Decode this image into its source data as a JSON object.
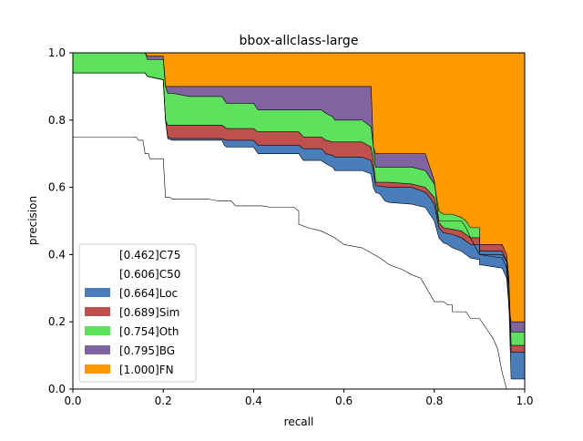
{
  "chart_data": {
    "type": "area",
    "title": "bbox-allclass-large",
    "xlabel": "recall",
    "ylabel": "precision",
    "xlim": [
      0,
      1
    ],
    "ylim": [
      0,
      1
    ],
    "xticks": [
      "0.0",
      "0.2",
      "0.4",
      "0.6",
      "0.8",
      "1.0"
    ],
    "yticks": [
      "0.0",
      "0.2",
      "0.4",
      "0.6",
      "0.8",
      "1.0"
    ],
    "legend_position": "lower-left",
    "series": [
      {
        "name": "C75",
        "label": "[0.462]C75",
        "fill": "#ffffff",
        "points": [
          [
            0,
            0.75
          ],
          [
            0.14,
            0.75
          ],
          [
            0.145,
            0.74
          ],
          [
            0.155,
            0.74
          ],
          [
            0.16,
            0.7
          ],
          [
            0.168,
            0.7
          ],
          [
            0.17,
            0.685
          ],
          [
            0.2,
            0.685
          ],
          [
            0.205,
            0.57
          ],
          [
            0.215,
            0.57
          ],
          [
            0.22,
            0.565
          ],
          [
            0.3,
            0.565
          ],
          [
            0.32,
            0.56
          ],
          [
            0.35,
            0.56
          ],
          [
            0.36,
            0.545
          ],
          [
            0.42,
            0.545
          ],
          [
            0.44,
            0.54
          ],
          [
            0.49,
            0.54
          ],
          [
            0.5,
            0.53
          ],
          [
            0.5,
            0.49
          ],
          [
            0.52,
            0.48
          ],
          [
            0.55,
            0.47
          ],
          [
            0.58,
            0.45
          ],
          [
            0.6,
            0.43
          ],
          [
            0.64,
            0.42
          ],
          [
            0.68,
            0.39
          ],
          [
            0.7,
            0.37
          ],
          [
            0.73,
            0.355
          ],
          [
            0.75,
            0.34
          ],
          [
            0.77,
            0.33
          ],
          [
            0.8,
            0.26
          ],
          [
            0.82,
            0.26
          ],
          [
            0.83,
            0.25
          ],
          [
            0.84,
            0.25
          ],
          [
            0.84,
            0.23
          ],
          [
            0.87,
            0.23
          ],
          [
            0.88,
            0.21
          ],
          [
            0.9,
            0.21
          ],
          [
            0.91,
            0.19
          ],
          [
            0.92,
            0.17
          ],
          [
            0.93,
            0.15
          ],
          [
            0.94,
            0.12
          ],
          [
            0.95,
            0.05
          ],
          [
            0.96,
            0.0
          ],
          [
            1.0,
            0.0
          ]
        ]
      },
      {
        "name": "C50",
        "label": "[0.606]C50",
        "fill": "#ffffff",
        "points": [
          [
            0,
            0.94
          ],
          [
            0.16,
            0.94
          ],
          [
            0.165,
            0.93
          ],
          [
            0.2,
            0.92
          ],
          [
            0.205,
            0.8
          ],
          [
            0.21,
            0.745
          ],
          [
            0.22,
            0.74
          ],
          [
            0.33,
            0.74
          ],
          [
            0.335,
            0.725
          ],
          [
            0.34,
            0.72
          ],
          [
            0.4,
            0.72
          ],
          [
            0.41,
            0.7
          ],
          [
            0.5,
            0.7
          ],
          [
            0.51,
            0.68
          ],
          [
            0.55,
            0.68
          ],
          [
            0.56,
            0.67
          ],
          [
            0.575,
            0.66
          ],
          [
            0.58,
            0.65
          ],
          [
            0.64,
            0.65
          ],
          [
            0.66,
            0.64
          ],
          [
            0.665,
            0.6
          ],
          [
            0.67,
            0.585
          ],
          [
            0.68,
            0.58
          ],
          [
            0.69,
            0.56
          ],
          [
            0.7,
            0.555
          ],
          [
            0.75,
            0.55
          ],
          [
            0.78,
            0.54
          ],
          [
            0.79,
            0.52
          ],
          [
            0.8,
            0.5
          ],
          [
            0.81,
            0.45
          ],
          [
            0.82,
            0.435
          ],
          [
            0.83,
            0.43
          ],
          [
            0.84,
            0.42
          ],
          [
            0.86,
            0.41
          ],
          [
            0.87,
            0.4
          ],
          [
            0.88,
            0.39
          ],
          [
            0.9,
            0.385
          ],
          [
            0.9,
            0.37
          ],
          [
            0.95,
            0.36
          ],
          [
            0.96,
            0.33
          ],
          [
            0.965,
            0.25
          ],
          [
            0.97,
            0.03
          ],
          [
            1.0,
            0.03
          ]
        ]
      },
      {
        "name": "Loc",
        "label": "[0.664]Loc",
        "fill": "#4a7ebb",
        "points": [
          [
            0,
            0.94
          ],
          [
            0.16,
            0.94
          ],
          [
            0.165,
            0.93
          ],
          [
            0.2,
            0.92
          ],
          [
            0.205,
            0.8
          ],
          [
            0.21,
            0.75
          ],
          [
            0.22,
            0.745
          ],
          [
            0.33,
            0.745
          ],
          [
            0.34,
            0.74
          ],
          [
            0.4,
            0.74
          ],
          [
            0.41,
            0.725
          ],
          [
            0.5,
            0.725
          ],
          [
            0.51,
            0.715
          ],
          [
            0.55,
            0.715
          ],
          [
            0.56,
            0.7
          ],
          [
            0.575,
            0.695
          ],
          [
            0.58,
            0.69
          ],
          [
            0.64,
            0.69
          ],
          [
            0.66,
            0.68
          ],
          [
            0.665,
            0.65
          ],
          [
            0.67,
            0.605
          ],
          [
            0.7,
            0.6
          ],
          [
            0.75,
            0.6
          ],
          [
            0.78,
            0.585
          ],
          [
            0.79,
            0.57
          ],
          [
            0.8,
            0.55
          ],
          [
            0.81,
            0.48
          ],
          [
            0.82,
            0.465
          ],
          [
            0.84,
            0.46
          ],
          [
            0.86,
            0.45
          ],
          [
            0.87,
            0.44
          ],
          [
            0.88,
            0.43
          ],
          [
            0.9,
            0.43
          ],
          [
            0.9,
            0.41
          ],
          [
            0.95,
            0.41
          ],
          [
            0.96,
            0.38
          ],
          [
            0.965,
            0.31
          ],
          [
            0.97,
            0.11
          ],
          [
            1.0,
            0.11
          ]
        ]
      },
      {
        "name": "Sim",
        "label": "[0.689]Sim",
        "fill": "#c0504d",
        "points": [
          [
            0,
            0.94
          ],
          [
            0.16,
            0.94
          ],
          [
            0.165,
            0.93
          ],
          [
            0.2,
            0.92
          ],
          [
            0.205,
            0.8
          ],
          [
            0.21,
            0.785
          ],
          [
            0.22,
            0.785
          ],
          [
            0.33,
            0.785
          ],
          [
            0.34,
            0.775
          ],
          [
            0.4,
            0.775
          ],
          [
            0.41,
            0.765
          ],
          [
            0.5,
            0.765
          ],
          [
            0.51,
            0.75
          ],
          [
            0.55,
            0.75
          ],
          [
            0.56,
            0.74
          ],
          [
            0.575,
            0.735
          ],
          [
            0.58,
            0.735
          ],
          [
            0.64,
            0.735
          ],
          [
            0.66,
            0.72
          ],
          [
            0.665,
            0.68
          ],
          [
            0.67,
            0.615
          ],
          [
            0.7,
            0.615
          ],
          [
            0.75,
            0.61
          ],
          [
            0.78,
            0.6
          ],
          [
            0.79,
            0.585
          ],
          [
            0.8,
            0.57
          ],
          [
            0.81,
            0.495
          ],
          [
            0.82,
            0.48
          ],
          [
            0.84,
            0.475
          ],
          [
            0.86,
            0.47
          ],
          [
            0.87,
            0.46
          ],
          [
            0.88,
            0.45
          ],
          [
            0.9,
            0.45
          ],
          [
            0.9,
            0.43
          ],
          [
            0.95,
            0.43
          ],
          [
            0.96,
            0.4
          ],
          [
            0.965,
            0.33
          ],
          [
            0.97,
            0.13
          ],
          [
            1.0,
            0.13
          ]
        ]
      },
      {
        "name": "Oth",
        "label": "[0.754]Oth",
        "fill": "#5ee25e",
        "points": [
          [
            0,
            1.0
          ],
          [
            0.16,
            1.0
          ],
          [
            0.165,
            0.98
          ],
          [
            0.2,
            0.98
          ],
          [
            0.205,
            0.9
          ],
          [
            0.21,
            0.88
          ],
          [
            0.22,
            0.88
          ],
          [
            0.26,
            0.87
          ],
          [
            0.33,
            0.87
          ],
          [
            0.34,
            0.85
          ],
          [
            0.4,
            0.85
          ],
          [
            0.41,
            0.83
          ],
          [
            0.5,
            0.83
          ],
          [
            0.51,
            0.83
          ],
          [
            0.55,
            0.83
          ],
          [
            0.56,
            0.82
          ],
          [
            0.575,
            0.81
          ],
          [
            0.58,
            0.8
          ],
          [
            0.64,
            0.8
          ],
          [
            0.66,
            0.78
          ],
          [
            0.665,
            0.72
          ],
          [
            0.67,
            0.66
          ],
          [
            0.7,
            0.66
          ],
          [
            0.75,
            0.66
          ],
          [
            0.78,
            0.65
          ],
          [
            0.79,
            0.63
          ],
          [
            0.8,
            0.61
          ],
          [
            0.81,
            0.53
          ],
          [
            0.82,
            0.52
          ],
          [
            0.84,
            0.52
          ],
          [
            0.86,
            0.51
          ],
          [
            0.87,
            0.5
          ],
          [
            0.88,
            0.48
          ],
          [
            0.9,
            0.48
          ],
          [
            0.9,
            0.4
          ],
          [
            0.95,
            0.39
          ],
          [
            0.96,
            0.36
          ],
          [
            0.965,
            0.26
          ],
          [
            0.97,
            0.17
          ],
          [
            1.0,
            0.17
          ]
        ]
      },
      {
        "name": "BG",
        "label": "[0.795]BG",
        "fill": "#8064a2",
        "points": [
          [
            0,
            1.0
          ],
          [
            0.16,
            1.0
          ],
          [
            0.165,
            0.99
          ],
          [
            0.2,
            0.99
          ],
          [
            0.205,
            0.9
          ],
          [
            0.21,
            0.9
          ],
          [
            0.22,
            0.9
          ],
          [
            0.33,
            0.9
          ],
          [
            0.34,
            0.9
          ],
          [
            0.4,
            0.9
          ],
          [
            0.5,
            0.9
          ],
          [
            0.55,
            0.9
          ],
          [
            0.58,
            0.9
          ],
          [
            0.64,
            0.9
          ],
          [
            0.66,
            0.9
          ],
          [
            0.665,
            0.72
          ],
          [
            0.67,
            0.7
          ],
          [
            0.7,
            0.7
          ],
          [
            0.75,
            0.7
          ],
          [
            0.78,
            0.7
          ],
          [
            0.8,
            0.62
          ],
          [
            0.81,
            0.5
          ],
          [
            0.82,
            0.5
          ],
          [
            0.84,
            0.5
          ],
          [
            0.86,
            0.5
          ],
          [
            0.87,
            0.48
          ],
          [
            0.88,
            0.45
          ],
          [
            0.9,
            0.4
          ],
          [
            0.95,
            0.4
          ],
          [
            0.96,
            0.38
          ],
          [
            0.965,
            0.24
          ],
          [
            0.97,
            0.2
          ],
          [
            1.0,
            0.2
          ]
        ]
      },
      {
        "name": "FN",
        "label": "[1.000]FN",
        "fill": "#ff9900",
        "points": [
          [
            0,
            1.0
          ],
          [
            1.0,
            1.0
          ]
        ]
      }
    ]
  }
}
